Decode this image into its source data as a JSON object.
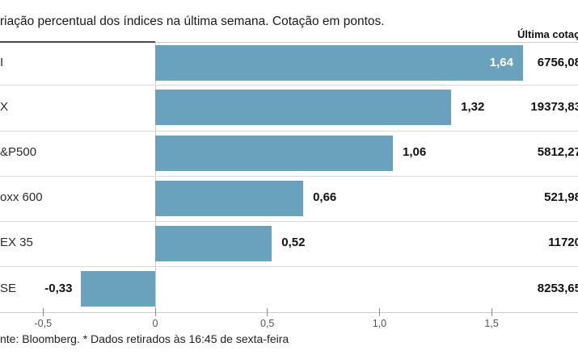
{
  "header": {
    "title": "riação percentual dos índices na última semana. Cotação em pontos.",
    "last_quote_column_label": "Última cotaç"
  },
  "chart_data": {
    "type": "bar",
    "orientation": "horizontal",
    "title": "riação percentual dos índices na última semana. Cotação em pontos.",
    "right_column_header": "Última cotaç",
    "rows": [
      {
        "index_label": "I",
        "change_pct": 1.64,
        "change_label": "1,64",
        "last_quote": "6756,08",
        "value_label_inside_bar": true
      },
      {
        "index_label": "X",
        "change_pct": 1.32,
        "change_label": "1,32",
        "last_quote": "19373,83",
        "value_label_inside_bar": false
      },
      {
        "index_label": "&P500",
        "change_pct": 1.06,
        "change_label": "1,06",
        "last_quote": "5812,27",
        "value_label_inside_bar": false
      },
      {
        "index_label": "oxx 600",
        "change_pct": 0.66,
        "change_label": "0,66",
        "last_quote": "521,98",
        "value_label_inside_bar": false
      },
      {
        "index_label": "EX 35",
        "change_pct": 0.52,
        "change_label": "0,52",
        "last_quote": "11720",
        "value_label_inside_bar": false
      },
      {
        "index_label": "SE",
        "change_pct": -0.33,
        "change_label": "-0,33",
        "last_quote": "8253,65",
        "value_label_inside_bar": false
      }
    ],
    "x_axis": {
      "tick_labels": [
        "-0,5",
        "0",
        "0,5",
        "1,0",
        "1,5"
      ],
      "tick_values": [
        -0.5,
        0,
        0.5,
        1.0,
        1.5
      ]
    },
    "bar_color": "#6AA2BD",
    "xlim": [
      -0.5,
      1.885
    ],
    "legend": "none",
    "grid": "zero line only"
  },
  "footer": {
    "note": "nte: Bloomberg.  * Dados retirados às 16:45 de sexta-feira"
  },
  "colors": {
    "bar": "#6AA2BD",
    "separator": "#d9d9d9",
    "axis": "#cccccc",
    "tick": "#8a8a8a",
    "text_dark": "#1a1a1a",
    "value_inside": "#ffffff"
  }
}
